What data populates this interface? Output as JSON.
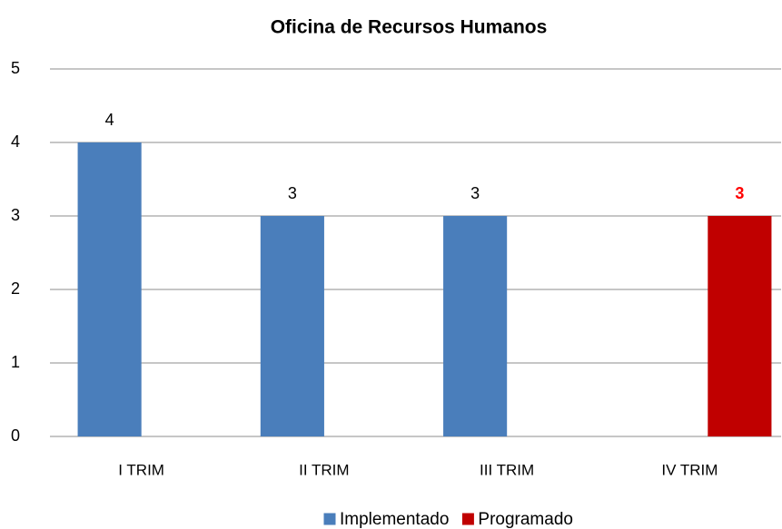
{
  "chart_data": {
    "type": "bar",
    "title": "Oficina de Recursos Humanos",
    "categories": [
      "I TRIM",
      "II TRIM",
      "III TRIM",
      "IV TRIM"
    ],
    "series": [
      {
        "name": "Implementado",
        "color": "#4a7ebb",
        "label_color": "#000000",
        "label_weight": "normal",
        "values": [
          4,
          3,
          3,
          null
        ]
      },
      {
        "name": "Programado",
        "color": "#c00000",
        "label_color": "#ff0000",
        "label_weight": "bold",
        "values": [
          null,
          null,
          null,
          3
        ]
      }
    ],
    "ylim": [
      0,
      5
    ],
    "yticks": [
      0,
      1,
      2,
      3,
      4,
      5
    ],
    "grid": true,
    "legend": "bottom"
  }
}
